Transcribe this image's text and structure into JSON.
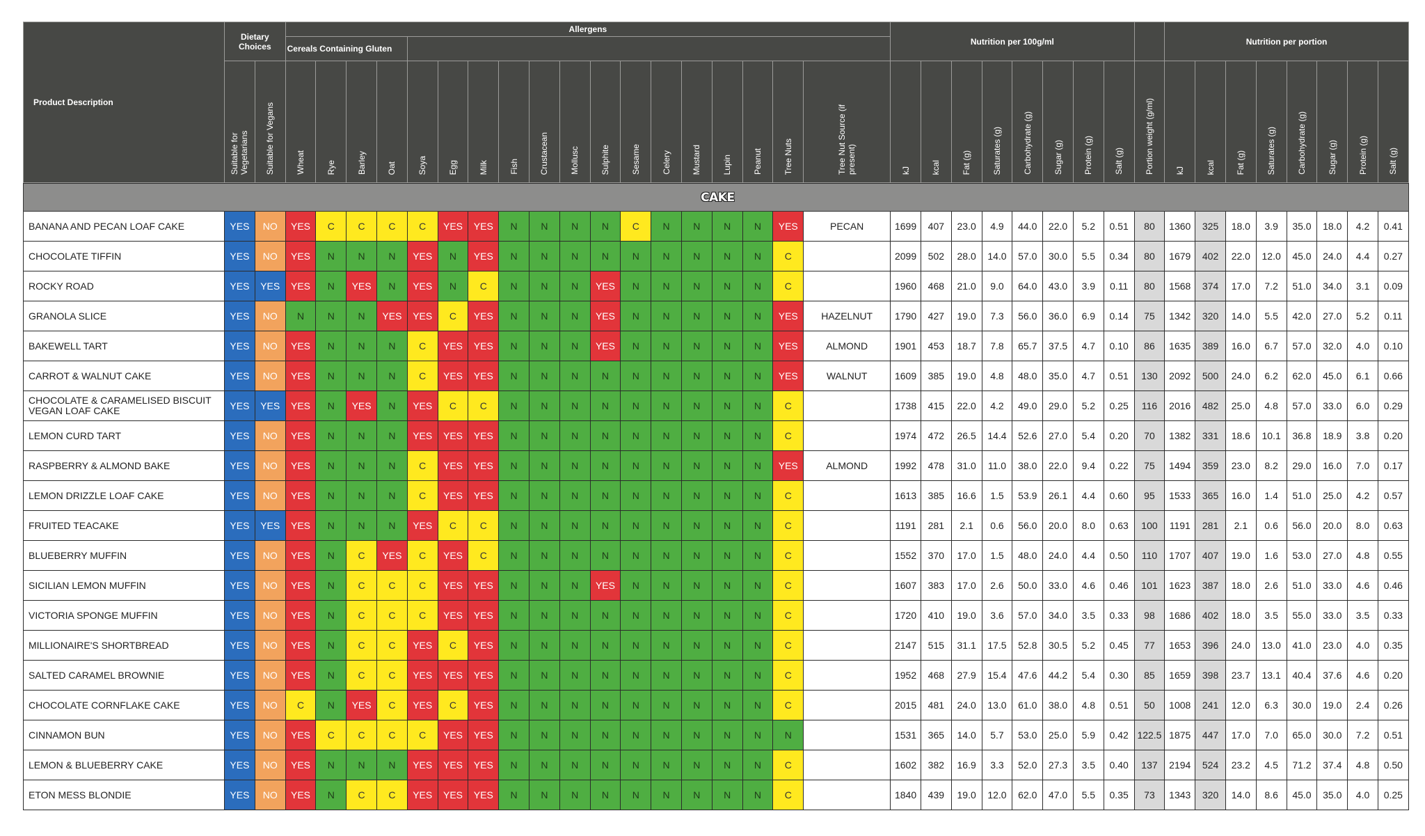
{
  "table": {
    "product_header": "Product Description",
    "groups": {
      "dietary": "Dietary Choices",
      "allergens": "Allergens",
      "cereals": "Cereals Containing Gluten",
      "nutrition_100g": "Nutrition per 100g/ml",
      "nutrition_portion": "Nutrition per portion"
    },
    "columns": [
      "Suitable for Vegetarians",
      "Suitable for Vegans",
      "Wheat",
      "Rye",
      "Barley",
      "Oat",
      "Soya",
      "Egg",
      "Milk",
      "Fish",
      "Crustacean",
      "Mollusc",
      "Sulphite",
      "Sesame",
      "Celery",
      "Mustard",
      "Lupin",
      "Peanut",
      "Tree Nuts",
      "Tree Nut Source (if present)",
      "kJ",
      "kcal",
      "Fat (g)",
      "Saturates (g)",
      "Carbohydrate (g)",
      "Sugar (g)",
      "Protein (g)",
      "Salt (g)",
      "Portion weight (g/ml)",
      "kJ",
      "kcal",
      "Fat (g)",
      "Saturates (g)",
      "Carbohydrate (g)",
      "Sugar (g)",
      "Protein (g)",
      "Salt (g)"
    ],
    "section": "CAKE",
    "rows": [
      [
        "BANANA AND PECAN LOAF CAKE",
        "YES",
        "NO",
        "YES",
        "C",
        "C",
        "C",
        "C",
        "YES",
        "YES",
        "N",
        "N",
        "N",
        "N",
        "C",
        "N",
        "N",
        "N",
        "N",
        "YES",
        "PECAN",
        "1699",
        "407",
        "23.0",
        "4.9",
        "44.0",
        "22.0",
        "5.2",
        "0.51",
        "80",
        "1360",
        "325",
        "18.0",
        "3.9",
        "35.0",
        "18.0",
        "4.2",
        "0.41"
      ],
      [
        "CHOCOLATE TIFFIN",
        "YES",
        "NO",
        "YES",
        "N",
        "N",
        "N",
        "YES",
        "N",
        "YES",
        "N",
        "N",
        "N",
        "N",
        "N",
        "N",
        "N",
        "N",
        "N",
        "C",
        null,
        "2099",
        "502",
        "28.0",
        "14.0",
        "57.0",
        "30.0",
        "5.5",
        "0.34",
        "80",
        "1679",
        "402",
        "22.0",
        "12.0",
        "45.0",
        "24.0",
        "4.4",
        "0.27"
      ],
      [
        "ROCKY ROAD",
        "YES",
        "YES",
        "YES",
        "N",
        "YES",
        "N",
        "YES",
        "N",
        "C",
        "N",
        "N",
        "N",
        "YES",
        "N",
        "N",
        "N",
        "N",
        "N",
        "C",
        null,
        "1960",
        "468",
        "21.0",
        "9.0",
        "64.0",
        "43.0",
        "3.9",
        "0.11",
        "80",
        "1568",
        "374",
        "17.0",
        "7.2",
        "51.0",
        "34.0",
        "3.1",
        "0.09"
      ],
      [
        "GRANOLA SLICE",
        "YES",
        "NO",
        "N",
        "N",
        "N",
        "YES",
        "YES",
        "C",
        "YES",
        "N",
        "N",
        "N",
        "YES",
        "N",
        "N",
        "N",
        "N",
        "N",
        "YES",
        "HAZELNUT",
        "1790",
        "427",
        "19.0",
        "7.3",
        "56.0",
        "36.0",
        "6.9",
        "0.14",
        "75",
        "1342",
        "320",
        "14.0",
        "5.5",
        "42.0",
        "27.0",
        "5.2",
        "0.11"
      ],
      [
        "BAKEWELL TART",
        "YES",
        "NO",
        "YES",
        "N",
        "N",
        "N",
        "C",
        "YES",
        "YES",
        "N",
        "N",
        "N",
        "YES",
        "N",
        "N",
        "N",
        "N",
        "N",
        "YES",
        "ALMOND",
        "1901",
        "453",
        "18.7",
        "7.8",
        "65.7",
        "37.5",
        "4.7",
        "0.10",
        "86",
        "1635",
        "389",
        "16.0",
        "6.7",
        "57.0",
        "32.0",
        "4.0",
        "0.10"
      ],
      [
        "CARROT & WALNUT CAKE",
        "YES",
        "NO",
        "YES",
        "N",
        "N",
        "N",
        "C",
        "YES",
        "YES",
        "N",
        "N",
        "N",
        "N",
        "N",
        "N",
        "N",
        "N",
        "N",
        "YES",
        "WALNUT",
        "1609",
        "385",
        "19.0",
        "4.8",
        "48.0",
        "35.0",
        "4.7",
        "0.51",
        "130",
        "2092",
        "500",
        "24.0",
        "6.2",
        "62.0",
        "45.0",
        "6.1",
        "0.66"
      ],
      [
        "CHOCOLATE & CARAMELISED BISCUIT VEGAN LOAF CAKE",
        "YES",
        "YES",
        "YES",
        "N",
        "YES",
        "N",
        "YES",
        "C",
        "C",
        "N",
        "N",
        "N",
        "N",
        "N",
        "N",
        "N",
        "N",
        "N",
        "C",
        null,
        "1738",
        "415",
        "22.0",
        "4.2",
        "49.0",
        "29.0",
        "5.2",
        "0.25",
        "116",
        "2016",
        "482",
        "25.0",
        "4.8",
        "57.0",
        "33.0",
        "6.0",
        "0.29"
      ],
      [
        "LEMON CURD TART",
        "YES",
        "NO",
        "YES",
        "N",
        "N",
        "N",
        "YES",
        "YES",
        "YES",
        "N",
        "N",
        "N",
        "N",
        "N",
        "N",
        "N",
        "N",
        "N",
        "C",
        null,
        "1974",
        "472",
        "26.5",
        "14.4",
        "52.6",
        "27.0",
        "5.4",
        "0.20",
        "70",
        "1382",
        "331",
        "18.6",
        "10.1",
        "36.8",
        "18.9",
        "3.8",
        "0.20"
      ],
      [
        "RASPBERRY & ALMOND BAKE",
        "YES",
        "NO",
        "YES",
        "N",
        "N",
        "N",
        "C",
        "YES",
        "YES",
        "N",
        "N",
        "N",
        "N",
        "N",
        "N",
        "N",
        "N",
        "N",
        "YES",
        "ALMOND",
        "1992",
        "478",
        "31.0",
        "11.0",
        "38.0",
        "22.0",
        "9.4",
        "0.22",
        "75",
        "1494",
        "359",
        "23.0",
        "8.2",
        "29.0",
        "16.0",
        "7.0",
        "0.17"
      ],
      [
        "LEMON DRIZZLE LOAF CAKE",
        "YES",
        "NO",
        "YES",
        "N",
        "N",
        "N",
        "C",
        "YES",
        "YES",
        "N",
        "N",
        "N",
        "N",
        "N",
        "N",
        "N",
        "N",
        "N",
        "C",
        null,
        "1613",
        "385",
        "16.6",
        "1.5",
        "53.9",
        "26.1",
        "4.4",
        "0.60",
        "95",
        "1533",
        "365",
        "16.0",
        "1.4",
        "51.0",
        "25.0",
        "4.2",
        "0.57"
      ],
      [
        "FRUITED TEACAKE",
        "YES",
        "YES",
        "YES",
        "N",
        "N",
        "N",
        "YES",
        "C",
        "C",
        "N",
        "N",
        "N",
        "N",
        "N",
        "N",
        "N",
        "N",
        "N",
        "C",
        null,
        "1191",
        "281",
        "2.1",
        "0.6",
        "56.0",
        "20.0",
        "8.0",
        "0.63",
        "100",
        "1191",
        "281",
        "2.1",
        "0.6",
        "56.0",
        "20.0",
        "8.0",
        "0.63"
      ],
      [
        "BLUEBERRY MUFFIN",
        "YES",
        "NO",
        "YES",
        "N",
        "C",
        "YES",
        "C",
        "YES",
        "C",
        "N",
        "N",
        "N",
        "N",
        "N",
        "N",
        "N",
        "N",
        "N",
        "C",
        null,
        "1552",
        "370",
        "17.0",
        "1.5",
        "48.0",
        "24.0",
        "4.4",
        "0.50",
        "110",
        "1707",
        "407",
        "19.0",
        "1.6",
        "53.0",
        "27.0",
        "4.8",
        "0.55"
      ],
      [
        "SICILIAN LEMON MUFFIN",
        "YES",
        "NO",
        "YES",
        "N",
        "C",
        "C",
        "C",
        "YES",
        "YES",
        "N",
        "N",
        "N",
        "YES",
        "N",
        "N",
        "N",
        "N",
        "N",
        "C",
        null,
        "1607",
        "383",
        "17.0",
        "2.6",
        "50.0",
        "33.0",
        "4.6",
        "0.46",
        "101",
        "1623",
        "387",
        "18.0",
        "2.6",
        "51.0",
        "33.0",
        "4.6",
        "0.46"
      ],
      [
        "VICTORIA SPONGE MUFFIN",
        "YES",
        "NO",
        "YES",
        "N",
        "C",
        "C",
        "C",
        "YES",
        "YES",
        "N",
        "N",
        "N",
        "N",
        "N",
        "N",
        "N",
        "N",
        "N",
        "C",
        null,
        "1720",
        "410",
        "19.0",
        "3.6",
        "57.0",
        "34.0",
        "3.5",
        "0.33",
        "98",
        "1686",
        "402",
        "18.0",
        "3.5",
        "55.0",
        "33.0",
        "3.5",
        "0.33"
      ],
      [
        "MILLIONAIRE'S SHORTBREAD",
        "YES",
        "NO",
        "YES",
        "N",
        "C",
        "C",
        "YES",
        "C",
        "YES",
        "N",
        "N",
        "N",
        "N",
        "N",
        "N",
        "N",
        "N",
        "N",
        "C",
        null,
        "2147",
        "515",
        "31.1",
        "17.5",
        "52.8",
        "30.5",
        "5.2",
        "0.45",
        "77",
        "1653",
        "396",
        "24.0",
        "13.0",
        "41.0",
        "23.0",
        "4.0",
        "0.35"
      ],
      [
        "SALTED CARAMEL BROWNIE",
        "YES",
        "NO",
        "YES",
        "N",
        "C",
        "C",
        "YES",
        "YES",
        "YES",
        "N",
        "N",
        "N",
        "N",
        "N",
        "N",
        "N",
        "N",
        "N",
        "C",
        null,
        "1952",
        "468",
        "27.9",
        "15.4",
        "47.6",
        "44.2",
        "5.4",
        "0.30",
        "85",
        "1659",
        "398",
        "23.7",
        "13.1",
        "40.4",
        "37.6",
        "4.6",
        "0.20"
      ],
      [
        "CHOCOLATE CORNFLAKE CAKE",
        "YES",
        "NO",
        "C",
        "N",
        "YES",
        "C",
        "YES",
        "C",
        "YES",
        "N",
        "N",
        "N",
        "N",
        "N",
        "N",
        "N",
        "N",
        "N",
        "C",
        null,
        "2015",
        "481",
        "24.0",
        "13.0",
        "61.0",
        "38.0",
        "4.8",
        "0.51",
        "50",
        "1008",
        "241",
        "12.0",
        "6.3",
        "30.0",
        "19.0",
        "2.4",
        "0.26"
      ],
      [
        "CINNAMON BUN",
        "YES",
        "NO",
        "YES",
        "C",
        "C",
        "C",
        "C",
        "YES",
        "YES",
        "N",
        "N",
        "N",
        "N",
        "N",
        "N",
        "N",
        "N",
        "N",
        "N",
        null,
        "1531",
        "365",
        "14.0",
        "5.7",
        "53.0",
        "25.0",
        "5.9",
        "0.42",
        "122.5",
        "1875",
        "447",
        "17.0",
        "7.0",
        "65.0",
        "30.0",
        "7.2",
        "0.51"
      ],
      [
        "LEMON & BLUEBERRY CAKE",
        "YES",
        "NO",
        "YES",
        "N",
        "N",
        "N",
        "YES",
        "YES",
        "YES",
        "N",
        "N",
        "N",
        "N",
        "N",
        "N",
        "N",
        "N",
        "N",
        "C",
        null,
        "1602",
        "382",
        "16.9",
        "3.3",
        "52.0",
        "27.3",
        "3.5",
        "0.40",
        "137",
        "2194",
        "524",
        "23.2",
        "4.5",
        "71.2",
        "37.4",
        "4.8",
        "0.50"
      ],
      [
        "ETON MESS BLONDIE",
        "YES",
        "NO",
        "YES",
        "N",
        "C",
        "C",
        "YES",
        "YES",
        "YES",
        "N",
        "N",
        "N",
        "N",
        "N",
        "N",
        "N",
        "N",
        "N",
        "C",
        null,
        "1840",
        "439",
        "19.0",
        "12.0",
        "62.0",
        "47.0",
        "5.5",
        "0.35",
        "73",
        "1343",
        "320",
        "14.0",
        "8.6",
        "45.0",
        "35.0",
        "4.0",
        "0.25"
      ]
    ]
  }
}
